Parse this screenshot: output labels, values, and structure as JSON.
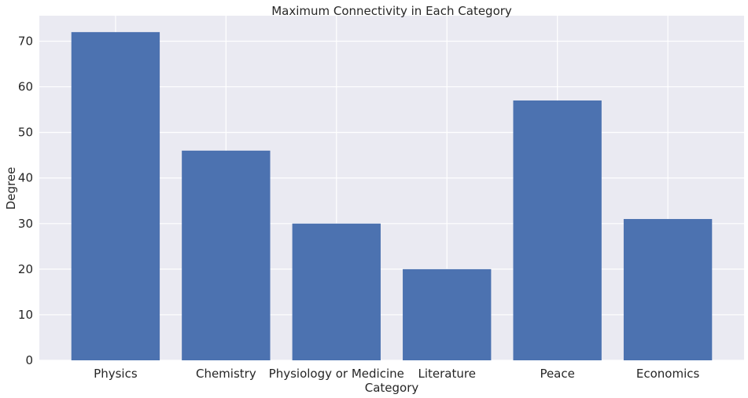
{
  "chart_data": {
    "type": "bar",
    "title": "Maximum Connectivity in Each Category",
    "xlabel": "Category",
    "ylabel": "Degree",
    "categories": [
      "Physics",
      "Chemistry",
      "Physiology or Medicine",
      "Literature",
      "Peace",
      "Economics"
    ],
    "values": [
      72,
      46,
      30,
      20,
      57,
      31
    ],
    "ylim": [
      0,
      75.6
    ],
    "yticks": [
      0,
      10,
      20,
      30,
      40,
      50,
      60,
      70
    ],
    "grid": true,
    "legend": "none",
    "colors": {
      "bar": "#4c72b0",
      "plot_background": "#eaeaf2",
      "grid": "#ffffff",
      "text": "#262626"
    }
  }
}
